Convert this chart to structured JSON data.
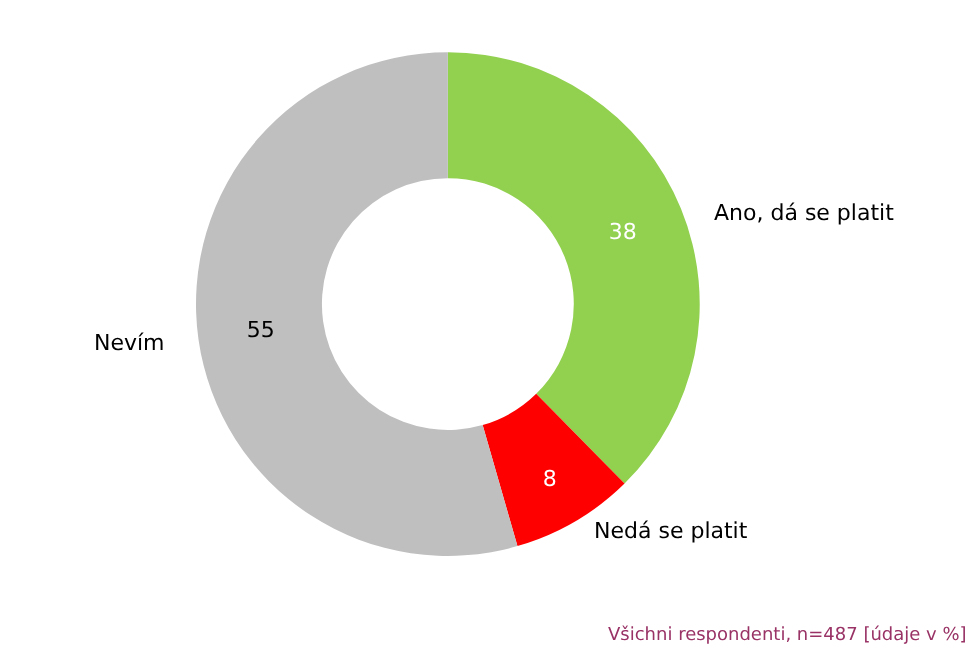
{
  "chart_data": {
    "type": "donut",
    "categories": [
      "Ano, dá se platit",
      "Nedá se platit",
      "Nevím"
    ],
    "values": [
      38,
      8,
      55
    ],
    "colors": [
      "#92d050",
      "#ff0000",
      "#bfbfbf"
    ],
    "data_labels": true,
    "legend": false,
    "annotations": [
      "Všichni respondenti, n=487 [údaje v %]"
    ]
  }
}
